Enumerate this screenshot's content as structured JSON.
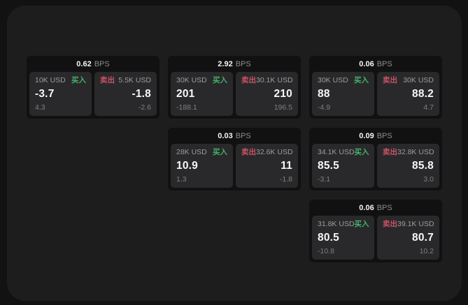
{
  "labels": {
    "buy": "买入",
    "sell": "卖出",
    "unit": "BPS"
  },
  "colors": {
    "buy_accent": "#45b168",
    "sell_accent": "#cb5265",
    "panel_bg": "#1d1d1e",
    "card_bg": "#111112",
    "tile_bg": "#29292b"
  },
  "cards": [
    {
      "bps": "0.62",
      "buy": {
        "amount": "10K USD",
        "value": "-3.7",
        "sub": "4.3"
      },
      "sell": {
        "amount": "5.5K USD",
        "value": "-1.8",
        "sub": "-2.6"
      }
    },
    {
      "bps": "2.92",
      "buy": {
        "amount": "30K USD",
        "value": "201",
        "sub": "-188.1"
      },
      "sell": {
        "amount": "30.1K USD",
        "value": "210",
        "sub": "196.5"
      }
    },
    {
      "bps": "0.06",
      "buy": {
        "amount": "30K USD",
        "value": "88",
        "sub": "-4.9"
      },
      "sell": {
        "amount": "30K USD",
        "value": "88.2",
        "sub": "4.7"
      }
    },
    {
      "bps": "0.03",
      "buy": {
        "amount": "28K USD",
        "value": "10.9",
        "sub": "1.3"
      },
      "sell": {
        "amount": "32.6K USD",
        "value": "11",
        "sub": "-1.8"
      }
    },
    {
      "bps": "0.09",
      "buy": {
        "amount": "34.1K USD",
        "value": "85.5",
        "sub": "-3.1"
      },
      "sell": {
        "amount": "32.8K USD",
        "value": "85.8",
        "sub": "3.0"
      }
    },
    {
      "bps": "0.06",
      "buy": {
        "amount": "31.8K USD",
        "value": "80.5",
        "sub": "-10.8"
      },
      "sell": {
        "amount": "39.1K USD",
        "value": "80.7",
        "sub": "10.2"
      }
    }
  ]
}
